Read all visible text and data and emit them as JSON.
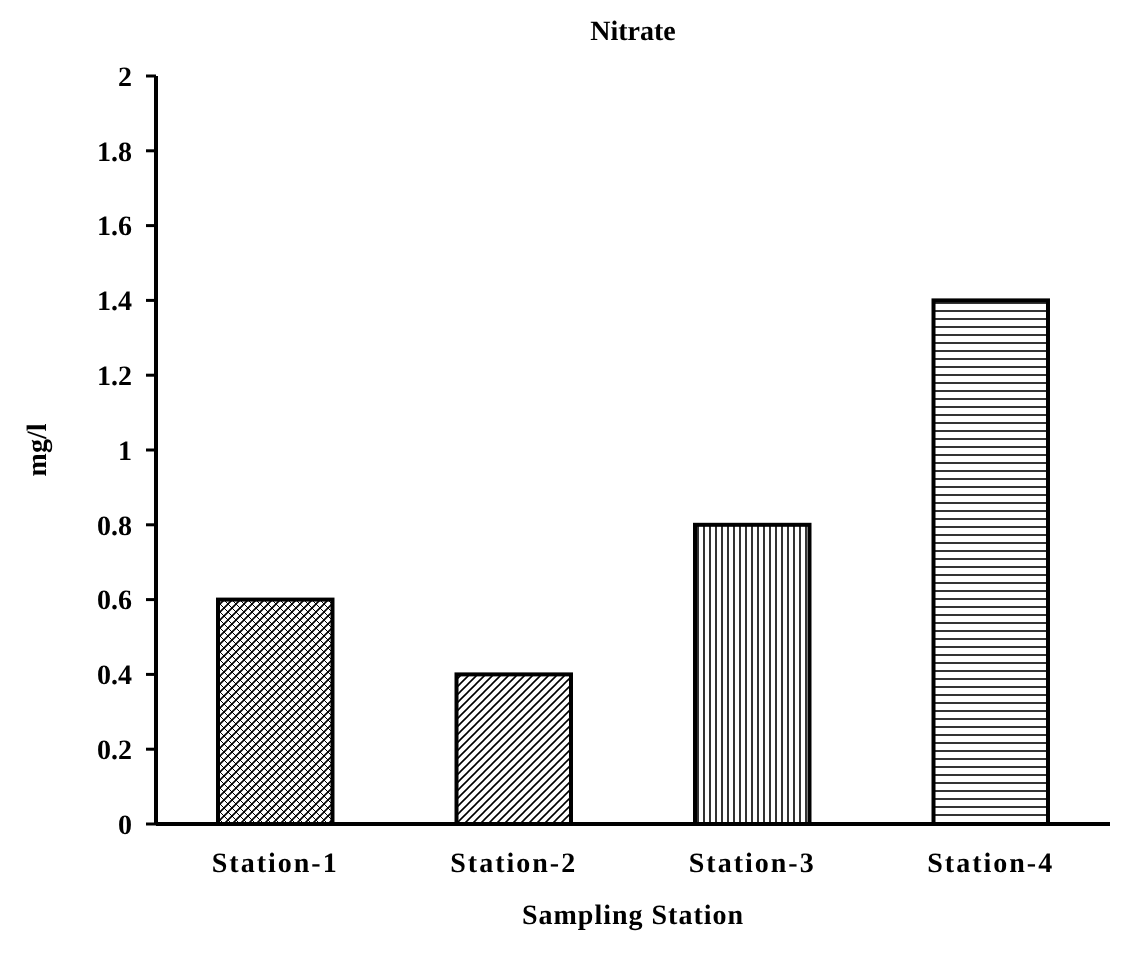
{
  "chart_data": {
    "type": "bar",
    "title": "Nitrate",
    "xlabel": "Sampling Station",
    "ylabel": "mg/l",
    "categories": [
      "Station-1",
      "Station-2",
      "Station-3",
      "Station-4"
    ],
    "values": [
      0.6,
      0.4,
      0.8,
      1.4
    ],
    "color": "#000000",
    "ylim": [
      0,
      2
    ],
    "yticks": [
      0,
      0.2,
      0.4,
      0.6,
      0.8,
      1,
      1.2,
      1.4,
      1.6,
      1.8,
      2
    ],
    "grid": false
  }
}
